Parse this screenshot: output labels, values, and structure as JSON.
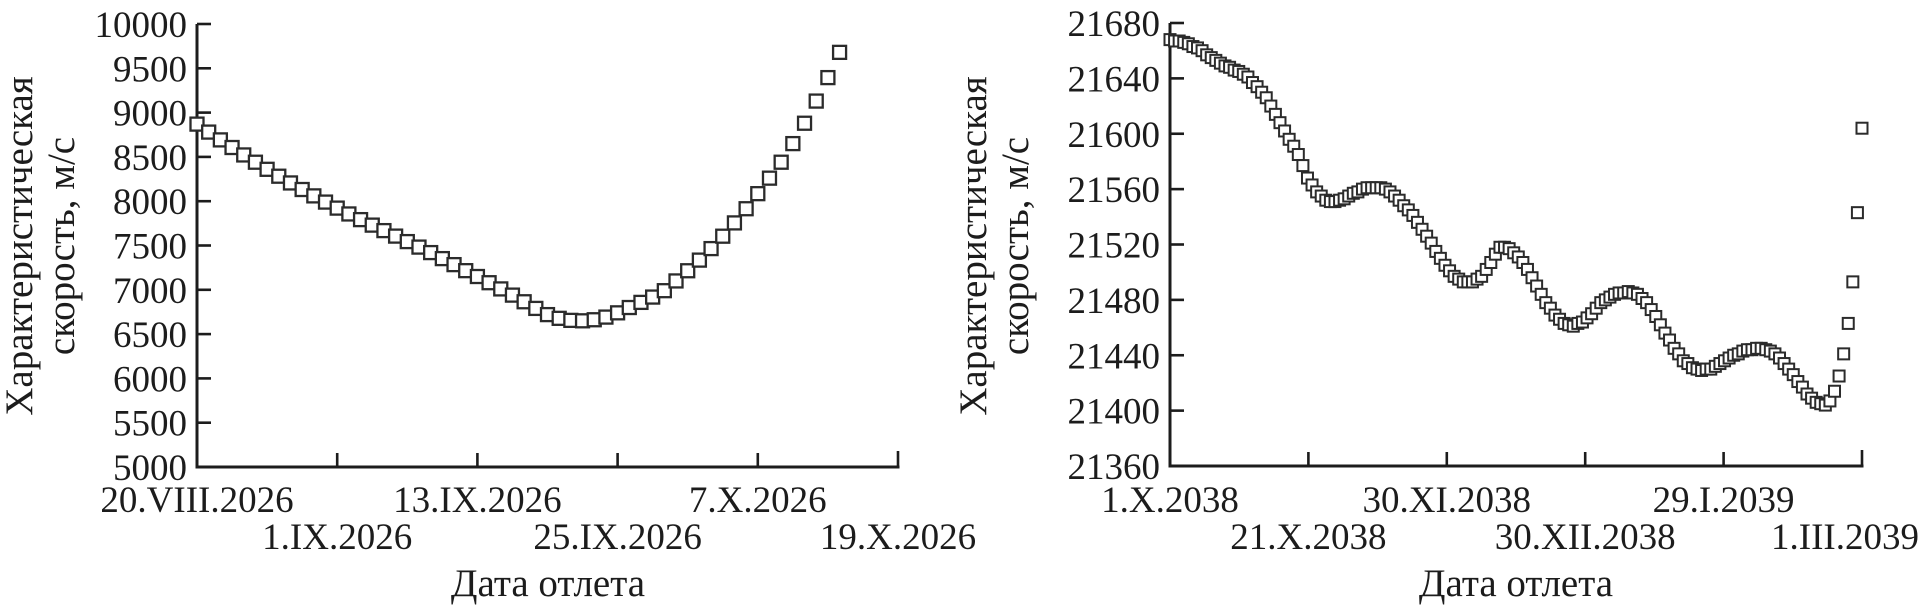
{
  "figure": {
    "background": "#ffffff",
    "axis_color": "#1c1c1c",
    "text_color": "#1c1c1c",
    "marker_fill": "#ffffff",
    "marker_stroke": "#2b2b2b"
  },
  "chart_data": [
    {
      "type": "scatter",
      "panel": "left",
      "ylabel_lines": [
        "Характеристическая",
        "скорость, м/с"
      ],
      "xlabel": "Дата отлета",
      "ylim": [
        5000,
        10000
      ],
      "ytick_step": 500,
      "yticks": [
        5000,
        5500,
        6000,
        6500,
        7000,
        7500,
        8000,
        8500,
        9000,
        9500,
        10000
      ],
      "xlim": [
        0,
        60
      ],
      "xticks": [
        {
          "pos": 0,
          "label": "20.VIII.2026",
          "row": 1
        },
        {
          "pos": 12,
          "label": "1.IX.2026",
          "row": 2
        },
        {
          "pos": 24,
          "label": "13.IX.2026",
          "row": 1
        },
        {
          "pos": 36,
          "label": "25.IX.2026",
          "row": 2
        },
        {
          "pos": 48,
          "label": "7.X.2026",
          "row": 1
        },
        {
          "pos": 60,
          "label": "19.X.2026",
          "row": 2
        }
      ],
      "legend": "none",
      "grid": false,
      "series": [
        {
          "name": "characteristic-velocity",
          "marker": "open-square",
          "x_start": 0,
          "x_step": 1,
          "values": [
            8870,
            8780,
            8692,
            8606,
            8522,
            8440,
            8360,
            8282,
            8206,
            8132,
            8060,
            7990,
            7922,
            7856,
            7792,
            7730,
            7668,
            7606,
            7544,
            7482,
            7420,
            7352,
            7284,
            7216,
            7150,
            7080,
            7010,
            6940,
            6865,
            6790,
            6720,
            6678,
            6655,
            6650,
            6662,
            6692,
            6740,
            6800,
            6858,
            6918,
            6990,
            7100,
            7215,
            7335,
            7465,
            7605,
            7755,
            7915,
            8085,
            8260,
            8440,
            8650,
            8880,
            9130,
            9395,
            9680
          ]
        }
      ]
    },
    {
      "type": "scatter",
      "panel": "right",
      "ylabel_lines": [
        "Характеристическая",
        "скорость, м/с"
      ],
      "xlabel": "Дата отлета",
      "ylim": [
        21360,
        21680
      ],
      "ytick_step": 40,
      "yticks": [
        21360,
        21400,
        21440,
        21480,
        21520,
        21560,
        21600,
        21640,
        21680
      ],
      "xlim": [
        0,
        151
      ],
      "xticks": [
        {
          "pos": 0,
          "label": "1.X.2038",
          "row": 1
        },
        {
          "pos": 30.2,
          "label": "21.X.2038",
          "row": 2
        },
        {
          "pos": 60.4,
          "label": "30.XI.2038",
          "row": 1
        },
        {
          "pos": 90.6,
          "label": "30.XII.2038",
          "row": 2
        },
        {
          "pos": 120.8,
          "label": "29.I.2039",
          "row": 1
        },
        {
          "pos": 151,
          "label": "1.III.2039",
          "row": 2
        }
      ],
      "legend": "none",
      "grid": false,
      "series": [
        {
          "name": "characteristic-velocity",
          "marker": "open-square",
          "x_start": 0,
          "x_step": 1,
          "values": [
            21668,
            21667,
            21667,
            21666,
            21665,
            21663,
            21662,
            21660,
            21657,
            21655,
            21653,
            21651,
            21649,
            21648,
            21646,
            21645,
            21643,
            21641,
            21637,
            21634,
            21630,
            21626,
            21620,
            21614,
            21608,
            21602,
            21596,
            21591,
            21585,
            21577,
            21568,
            21563,
            21558,
            21555,
            21552,
            21551,
            21551,
            21552,
            21553,
            21555,
            21557,
            21558,
            21560,
            21561,
            21561,
            21561,
            21561,
            21560,
            21558,
            21555,
            21552,
            21548,
            21545,
            21541,
            21536,
            21531,
            21526,
            21521,
            21515,
            21510,
            21505,
            21501,
            21497,
            21495,
            21493,
            21493,
            21493,
            21495,
            21497,
            21502,
            21507,
            21513,
            21518,
            21518,
            21517,
            21514,
            21511,
            21507,
            21502,
            21496,
            21490,
            21484,
            21478,
            21474,
            21469,
            21466,
            21463,
            21462,
            21461,
            21463,
            21464,
            21467,
            21470,
            21474,
            21478,
            21480,
            21482,
            21484,
            21485,
            21485,
            21486,
            21485,
            21484,
            21481,
            21478,
            21473,
            21468,
            21462,
            21456,
            21451,
            21445,
            21441,
            21436,
            21434,
            21431,
            21430,
            21429,
            21430,
            21430,
            21432,
            21434,
            21436,
            21438,
            21440,
            21441,
            21443,
            21444,
            21444,
            21445,
            21445,
            21444,
            21443,
            21441,
            21438,
            21434,
            21430,
            21426,
            21421,
            21417,
            21412,
            21409,
            21406,
            21405,
            21404,
            21407,
            21414,
            21425,
            21441,
            21463,
            21493,
            21543,
            21604
          ]
        }
      ]
    }
  ]
}
